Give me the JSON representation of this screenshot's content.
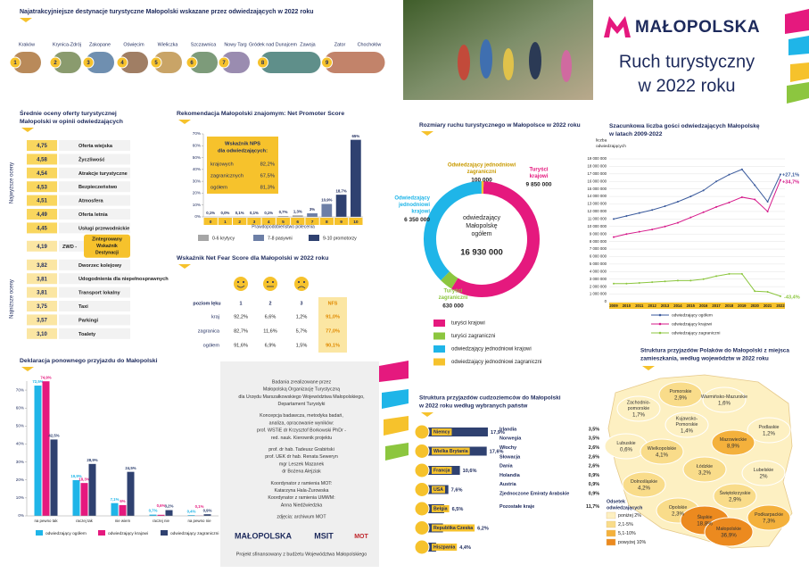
{
  "destinations": {
    "title": "Najatrakcyjniejsze destynacje turystyczne Małopolski wskazane przez odwiedzających w 2022 roku",
    "items": [
      {
        "rank": 1,
        "places": [
          "Kraków"
        ]
      },
      {
        "rank": 2,
        "places": [
          "Krynica-Zdrój"
        ]
      },
      {
        "rank": 3,
        "places": [
          "Zakopane"
        ]
      },
      {
        "rank": 4,
        "places": [
          "Oświęcim"
        ]
      },
      {
        "rank": 5,
        "places": [
          "Wieliczka"
        ]
      },
      {
        "rank": 6,
        "places": [
          "Szczawnica"
        ]
      },
      {
        "rank": 7,
        "places": [
          "Nowy Targ"
        ]
      },
      {
        "rank": 8,
        "places": [
          "Gródek nad Dunajcem",
          "Zawoja"
        ]
      },
      {
        "rank": 9,
        "places": [
          "Zator",
          "Chochołów"
        ]
      }
    ]
  },
  "header": {
    "logo": "MAŁOPOLSKA",
    "title": [
      "Ruch turystyczny",
      "w 2022 roku"
    ]
  },
  "ratings": {
    "title": [
      "Średnie oceny oferty turystycznej",
      "Małopolski w opinii odwiedzających"
    ],
    "top_label": "Najwyższe oceny",
    "bottom_label": "Najniższe oceny",
    "items": [
      {
        "score": "4,75",
        "label": "Oferta wiejska"
      },
      {
        "score": "4,58",
        "label": "Życzliwość"
      },
      {
        "score": "4,54",
        "label": "Atrakcje turystyczne"
      },
      {
        "score": "4,53",
        "label": "Bezpieczeństwo"
      },
      {
        "score": "4,51",
        "label": "Atmosfera"
      },
      {
        "score": "4,49",
        "label": "Oferta letnia"
      },
      {
        "score": "4,45",
        "label": "Usługi przewodnickie"
      },
      {
        "score": "4,19",
        "label": "ZWD -",
        "note": [
          "Zintegrowany",
          "Wskaźnik",
          "Destynacji"
        ]
      },
      {
        "score": "3,82",
        "label": "Dworzec kolejowy"
      },
      {
        "score": "3,81",
        "label": "Udogodnienia dla niepełnosprawnych"
      },
      {
        "score": "3,81",
        "label": "Transport lokalny"
      },
      {
        "score": "3,75",
        "label": "Taxi"
      },
      {
        "score": "3,57",
        "label": "Parkingi"
      },
      {
        "score": "3,10",
        "label": "Toalety"
      }
    ]
  },
  "nps": {
    "type": "bar",
    "title": "Rekomendacja Małopolski znajomym: Net Promoter Score",
    "x_label": "Prawdopodobieństwo polecenia",
    "categories": [
      0,
      1,
      2,
      3,
      4,
      5,
      6,
      7,
      8,
      9,
      10
    ],
    "values": [
      0.1,
      0,
      0.1,
      0.1,
      0.1,
      0.7,
      1.3,
      3,
      10.9,
      18.7,
      65
    ],
    "value_labels": [
      "0,1%",
      "0,0%",
      "0,1%",
      "0,1%",
      "0,1%",
      "0,7%",
      "1,3%",
      "3%",
      "10,9%",
      "18,7%",
      "65%"
    ],
    "colors": [
      "#a6a6a6",
      "#a6a6a6",
      "#a6a6a6",
      "#a6a6a6",
      "#a6a6a6",
      "#a6a6a6",
      "#a6a6a6",
      "#6d7fa6",
      "#6d7fa6",
      "#2f4170",
      "#2f4170"
    ],
    "ylim": [
      0,
      70
    ],
    "yticks": [
      {
        "value": 0,
        "label": "0%"
      },
      {
        "value": 10,
        "label": "10%"
      },
      {
        "value": 20,
        "label": "20%"
      },
      {
        "value": 30,
        "label": "30%"
      },
      {
        "value": 40,
        "label": "40%"
      },
      {
        "value": 50,
        "label": "50%"
      },
      {
        "value": 60,
        "label": "60%"
      },
      {
        "value": 70,
        "label": "70%"
      }
    ],
    "grid": false,
    "legend": [
      {
        "name": "0-6 krytycy",
        "color": "#a6a6a6"
      },
      {
        "name": "7-8 pasywni",
        "color": "#6d7fa6"
      },
      {
        "name": "9-10 promotorzy",
        "color": "#2f4170"
      }
    ],
    "box": {
      "title": [
        "Wskaźnik NPS",
        "dla odwiedzających:"
      ],
      "rows": [
        {
          "label": "krajowych",
          "value": "82,2%"
        },
        {
          "label": "zagranicznych",
          "value": "67,5%"
        },
        {
          "label": "ogółem",
          "value": "81,3%"
        }
      ]
    }
  },
  "nfs": {
    "title": "Wskaźnik Net Fear Score dla Małopolski w 2022 roku",
    "level_header": "poziom lęku",
    "levels": [
      1,
      2,
      3
    ],
    "nfs_header": "NFS",
    "rows": [
      {
        "label": "kraj",
        "cells": [
          "92,2%",
          "6,6%",
          "1,2%"
        ],
        "nfs": "91,0%"
      },
      {
        "label": "zagranica",
        "cells": [
          "82,7%",
          "11,6%",
          "5,7%"
        ],
        "nfs": "77,0%"
      },
      {
        "label": "ogółem",
        "cells": [
          "91,6%",
          "6,9%",
          "1,5%"
        ],
        "nfs": "90,1%"
      }
    ]
  },
  "declaration": {
    "type": "bar",
    "title": "Deklaracja ponownego przyjazdu do Małopolski",
    "categories": [
      "na pewno tak",
      "raczej tak",
      "nie wiem",
      "raczej nie",
      "na pewno nie"
    ],
    "series": [
      {
        "name": "odwiedzający ogółem",
        "color": "#1fb5e8",
        "values": [
          72.5,
          19.9,
          7.1,
          0.7,
          0.4
        ],
        "value_labels": [
          "72,5%",
          "19,9%",
          "7,1%",
          "0,7%",
          "0,4%"
        ]
      },
      {
        "name": "odwiedzający krajowi",
        "color": "#e5197e",
        "values": [
          74.9,
          18.3,
          6,
          0.6,
          0.1
        ],
        "value_labels": [
          "74,9%",
          "18,3%",
          "6%",
          "0,6%",
          "0,1%"
        ]
      },
      {
        "name": "odwiedzający zagraniczni",
        "color": "#2f4170",
        "values": [
          42.5,
          28.9,
          24.5,
          3.2,
          0.9
        ],
        "value_labels": [
          "42,5%",
          "28,9%",
          "24,5%",
          "3,2%",
          "0,9%"
        ]
      }
    ],
    "ylim": [
      0,
      75
    ],
    "yticks": [
      {
        "value": 0,
        "label": "0%"
      },
      {
        "value": 10,
        "label": "10%"
      },
      {
        "value": 20,
        "label": "20%"
      },
      {
        "value": 30,
        "label": "30%"
      },
      {
        "value": 40,
        "label": "40%"
      },
      {
        "value": 50,
        "label": "50%"
      },
      {
        "value": 60,
        "label": "60%"
      },
      {
        "value": 70,
        "label": "70%"
      }
    ]
  },
  "credits": {
    "groups": [
      [
        "Badania zrealizowane przez",
        "Małopolską Organizację Turystyczną",
        "dla Urzędu Marszałkowskiego Województwa Małopolskiego,",
        "Departament Turystyki"
      ],
      [
        "Koncepcja badawcza, metodyka badań,",
        "analiza, opracowanie wyników:",
        "prof. WSTiE dr Krzysztof Borkowski PhDr -",
        "red. nauk. Kierownik projektu"
      ],
      [
        "prof. dr hab. Tadeusz Grabiński",
        "prof. UEK dr hab. Renata Seweryn",
        "mgr Leszek Mazanek",
        "dr Bożena Alejziak"
      ],
      [
        "Koordynator z ramienia MOT:",
        "Katarzyna Hala-Żurowska",
        "Koordynator z ramienia UMWM:",
        "Anna Niedźwiedzka"
      ],
      [
        "zdjęcia: archiwum MOT"
      ]
    ],
    "logos": [
      "MAŁOPOLSKA",
      "MSIT",
      "MOT"
    ],
    "footer": "Projekt sfinansowany z budżetu Województwa Małopolskiego"
  },
  "traffic": {
    "type": "pie",
    "title": "Rozmiary ruchu turystycznego w Małopolsce w 2022 roku",
    "center": {
      "lines": [
        "odwiedzający",
        "Małopolskę",
        "ogółem"
      ],
      "value": 16930000,
      "label": "16 930 000"
    },
    "segments": [
      {
        "name": [
          "Turyści",
          "krajowi"
        ],
        "legend": "turyści krajowi",
        "value": 9850000,
        "value_label": "9 850 000",
        "color": "#e5197e"
      },
      {
        "name": [
          "Turyści",
          "zagraniczni"
        ],
        "legend": "turyści zagraniczni",
        "value": 630000,
        "value_label": "630 000",
        "color": "#8cc63f"
      },
      {
        "name": [
          "Odwiedzający",
          "jednodniowi",
          "krajowi"
        ],
        "legend": "odwiedzający jednodniowi krajowi",
        "value": 6350000,
        "value_label": "6 350 000",
        "color": "#1fb5e8"
      },
      {
        "name": [
          "Odwiedzający jednodniowi",
          "zagraniczni"
        ],
        "legend": "odwiedzający jednodniowi zagraniczni",
        "value": 100000,
        "value_label": "100 000",
        "color": "#f6c22c"
      }
    ]
  },
  "guests": {
    "type": "line",
    "title": [
      "Szacunkowa liczba gości odwiedzających  Małopolskę",
      "w latach 2009-2022"
    ],
    "y_label": [
      "liczba",
      "odwiedzających"
    ],
    "x": [
      2009,
      2010,
      2011,
      2012,
      2013,
      2014,
      2015,
      2016,
      2017,
      2018,
      2019,
      2020,
      2021,
      2022
    ],
    "xlim": [
      2009,
      2022
    ],
    "ylim": [
      0,
      19000000
    ],
    "yticks": [
      0,
      {
        "value": 1000000,
        "label": "1 000 000"
      },
      {
        "value": 2000000,
        "label": "2 000 000"
      },
      {
        "value": 3000000,
        "label": "3 000 000"
      },
      {
        "value": 4000000,
        "label": "4 000 000"
      },
      {
        "value": 5000000,
        "label": "5 000 000"
      },
      {
        "value": 6000000,
        "label": "6 000 000"
      },
      {
        "value": 7000000,
        "label": "7 000 000"
      },
      {
        "value": 8000000,
        "label": "8 000 000"
      },
      {
        "value": 9000000,
        "label": "9 000 000"
      },
      {
        "value": 10000000,
        "label": "10 000 000"
      },
      {
        "value": 11000000,
        "label": "11 000 000"
      },
      {
        "value": 12000000,
        "label": "12 000 000"
      },
      {
        "value": 13000000,
        "label": "13 000 000"
      },
      {
        "value": 14000000,
        "label": "14 000 000"
      },
      {
        "value": 15000000,
        "label": "15 000 000"
      },
      {
        "value": 16000000,
        "label": "16 000 000"
      },
      {
        "value": 17000000,
        "label": "17 000 000"
      },
      {
        "value": 18000000,
        "label": "18 000 000"
      },
      {
        "value": 19000000,
        "label": "19 000 000"
      }
    ],
    "grid": true,
    "series": [
      {
        "name": "odwiedzający ogółem",
        "color": "#3a5a9c",
        "values": [
          11000000,
          11400000,
          11800000,
          12200000,
          12700000,
          13300000,
          14000000,
          14800000,
          16000000,
          16900000,
          17600000,
          15500000,
          13300000,
          16930000
        ]
      },
      {
        "name": "odwiedzający krajowi",
        "color": "#d6198a",
        "values": [
          8600000,
          9000000,
          9300000,
          9600000,
          10000000,
          10500000,
          11200000,
          11900000,
          12600000,
          13200000,
          13900000,
          13600000,
          12000000,
          16200000
        ]
      },
      {
        "name": "odwiedzający zagraniczni",
        "color": "#8cc63f",
        "values": [
          2400000,
          2400000,
          2500000,
          2600000,
          2700000,
          2800000,
          2800000,
          3000000,
          3400000,
          3700000,
          3700000,
          1400000,
          1300000,
          730000
        ]
      }
    ],
    "annotations": [
      {
        "text": "+27,1%",
        "color": "#3a5a9c"
      },
      {
        "text": "+34,7%",
        "color": "#d6198a"
      },
      {
        "text": "-43,4%",
        "color": "#8cc63f"
      }
    ]
  },
  "foreign": {
    "type": "bar",
    "title": [
      "Struktura przyjazdów cudzoziemców do Małopolski",
      "w 2022 roku według wybranych państw"
    ],
    "categories": [
      "Niemcy",
      "Wielka Brytania",
      "Francja",
      "USA",
      "Belgia",
      "Republika Czeska",
      "Hiszpania"
    ],
    "values": [
      17.9,
      17.6,
      10.6,
      7.6,
      6.5,
      6.2,
      4.4
    ],
    "value_labels": [
      "17,9%",
      "17,6%",
      "10,6%",
      "7,6%",
      "6,5%",
      "6,2%",
      "4,4%"
    ],
    "color": "#2f4170",
    "others": [
      {
        "name": "Irlandia",
        "value": "3,5%"
      },
      {
        "name": "Norwegia",
        "value": "3,5%"
      },
      {
        "name": "Włochy",
        "value": "2,6%"
      },
      {
        "name": "Słowacja",
        "value": "2,6%"
      },
      {
        "name": "Dania",
        "value": "2,6%"
      },
      {
        "name": "Holandia",
        "value": "0,9%"
      },
      {
        "name": "Austria",
        "value": "0,9%"
      },
      {
        "name": "Zjednoczone Emiraty Arabskie",
        "value": "0,9%"
      },
      {
        "name": "Pozostałe kraje",
        "value": "11,7%"
      }
    ]
  },
  "regions": {
    "title": [
      "Struktura przyjazdów Polaków do Małopolski z miejsca",
      "zamieszkania, według województw w 2022 roku"
    ],
    "items": [
      {
        "name": [
          "Pomorskie"
        ],
        "value": 2.9,
        "label": "2,9%"
      },
      {
        "name": [
          "Zachodnio-",
          "pomorskie"
        ],
        "value": 1.7,
        "label": "1,7%"
      },
      {
        "name": [
          "Warmińsko-Mazurskie"
        ],
        "value": 1.6,
        "label": "1,6%"
      },
      {
        "name": [
          "Podlaskie"
        ],
        "value": 1.2,
        "label": "1,2%"
      },
      {
        "name": [
          "Kujawsko-",
          "Pomorskie"
        ],
        "value": 1.4,
        "label": "1,4%"
      },
      {
        "name": [
          "Lubuskie"
        ],
        "value": 0.6,
        "label": "0,6%"
      },
      {
        "name": [
          "Wielkopolskie"
        ],
        "value": 4.1,
        "label": "4,1%"
      },
      {
        "name": [
          "Mazowieckie"
        ],
        "value": 8.9,
        "label": "8,9%"
      },
      {
        "name": [
          "Dolnośląskie"
        ],
        "value": 4.2,
        "label": "4,2%"
      },
      {
        "name": [
          "Łódzkie"
        ],
        "value": 3.2,
        "label": "3,2%"
      },
      {
        "name": [
          "Lubelskie"
        ],
        "value": 2,
        "label": "2%"
      },
      {
        "name": [
          "Opolskie"
        ],
        "value": 2.3,
        "label": "2,3%"
      },
      {
        "name": [
          "Śląskie"
        ],
        "value": 18.8,
        "label": "18,8%"
      },
      {
        "name": [
          "Świętokrzyskie"
        ],
        "value": 2.9,
        "label": "2,9%"
      },
      {
        "name": [
          "Małopolskie"
        ],
        "value": 36.9,
        "label": "36,9%"
      },
      {
        "name": [
          "Podkarpackie"
        ],
        "value": 7.3,
        "label": "7,3%"
      }
    ],
    "legend_title": [
      "Odsetek",
      "odwiedzających"
    ],
    "legend": [
      {
        "label": "poniżej 2%",
        "to": 2,
        "color": "#fdf0c2"
      },
      {
        "label": "2,1-5%",
        "from": 2.1,
        "to": 5,
        "color": "#f9dc8a"
      },
      {
        "label": "5,1-10%",
        "from": 5.1,
        "to": 10,
        "color": "#f4b13c"
      },
      {
        "label": "powyżej 10%",
        "from": 10,
        "color": "#ec8a1f"
      }
    ]
  }
}
